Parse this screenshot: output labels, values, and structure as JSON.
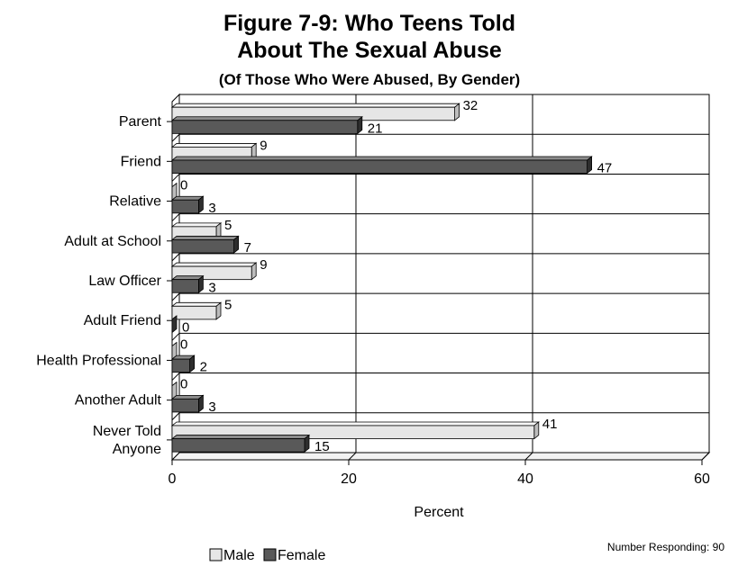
{
  "chart_data": {
    "type": "bar",
    "orientation": "horizontal",
    "title_line1": "Figure 7-9:  Who Teens Told",
    "title_line2": "About The Sexual Abuse",
    "subtitle": "(Of Those Who Were Abused, By Gender)",
    "categories": [
      [
        "Parent"
      ],
      [
        "Friend"
      ],
      [
        "Relative"
      ],
      [
        "Adult at School"
      ],
      [
        "Law Officer"
      ],
      [
        "Adult Friend"
      ],
      [
        "Health Professional"
      ],
      [
        "Another Adult"
      ],
      [
        "Never Told",
        "Anyone"
      ]
    ],
    "series": [
      {
        "name": "Male",
        "color": "#e6e6e6",
        "values": [
          32,
          9,
          0,
          5,
          9,
          5,
          0,
          0,
          41
        ]
      },
      {
        "name": "Female",
        "color": "#595959",
        "values": [
          21,
          47,
          3,
          7,
          3,
          0,
          2,
          3,
          15
        ]
      }
    ],
    "xlabel": "Percent",
    "xlim": [
      0,
      60
    ],
    "xticks": [
      "0",
      "20",
      "40",
      "60"
    ],
    "grid": true,
    "legend_placement": "bottom-left",
    "note": "Number Responding:  90"
  }
}
